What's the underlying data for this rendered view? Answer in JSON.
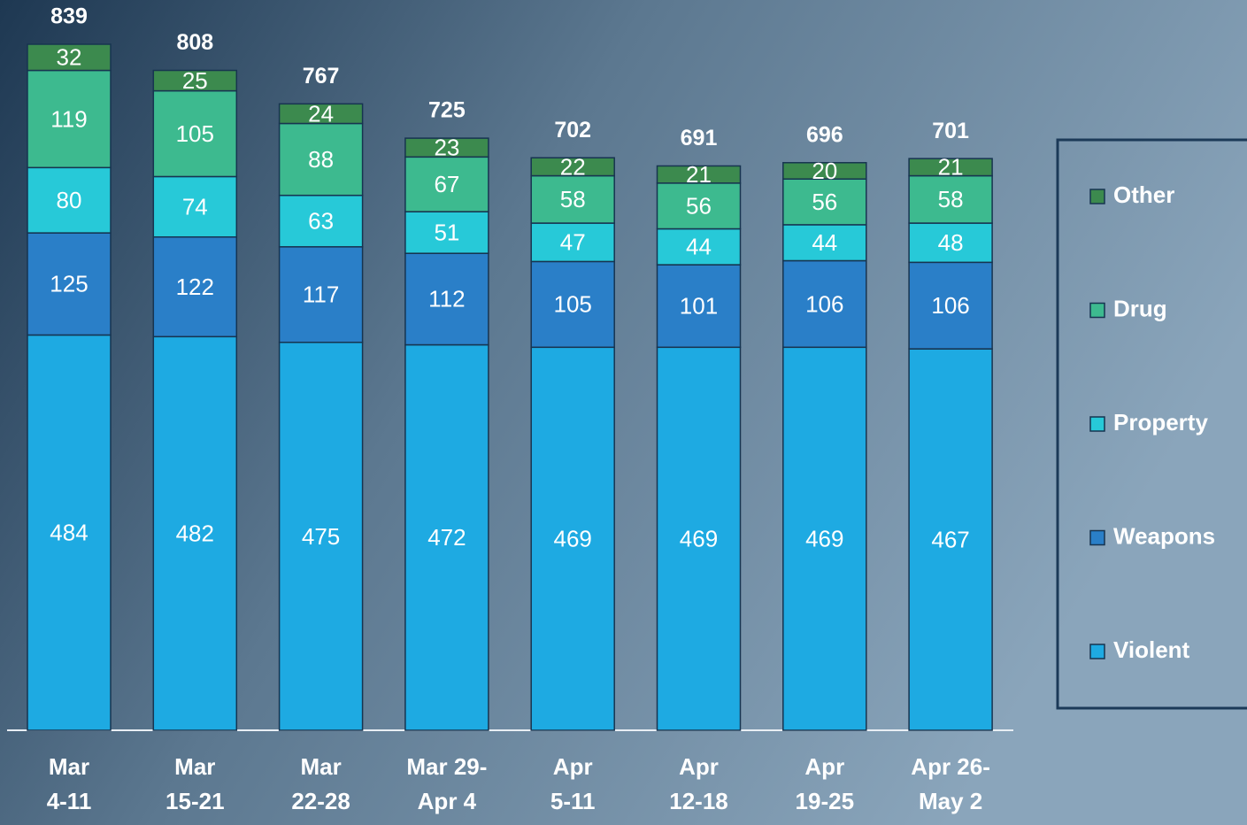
{
  "chart_data": {
    "type": "stacked_bar",
    "categories": [
      [
        "Mar",
        "4-11"
      ],
      [
        "Mar",
        "15-21"
      ],
      [
        "Mar",
        "22-28"
      ],
      [
        "Mar 29-",
        "Apr 4"
      ],
      [
        "Apr",
        "5-11"
      ],
      [
        "Apr",
        "12-18"
      ],
      [
        "Apr",
        "19-25"
      ],
      [
        "Apr 26-",
        "May 2"
      ]
    ],
    "series": [
      {
        "name": "Violent",
        "color": "#1eaae2",
        "values": [
          484,
          482,
          475,
          472,
          469,
          469,
          469,
          467
        ]
      },
      {
        "name": "Weapons",
        "color": "#2a7fc8",
        "values": [
          125,
          122,
          117,
          112,
          105,
          101,
          106,
          106
        ]
      },
      {
        "name": "Property",
        "color": "#27c9d8",
        "values": [
          80,
          74,
          63,
          51,
          47,
          44,
          44,
          48
        ]
      },
      {
        "name": "Drug",
        "color": "#3dba8f",
        "values": [
          119,
          105,
          88,
          67,
          58,
          56,
          56,
          58
        ]
      },
      {
        "name": "Other",
        "color": "#3c8a4e",
        "values": [
          32,
          25,
          24,
          23,
          22,
          21,
          20,
          21
        ]
      }
    ],
    "totals": [
      839,
      808,
      767,
      725,
      702,
      691,
      696,
      701
    ],
    "legend": "right"
  }
}
